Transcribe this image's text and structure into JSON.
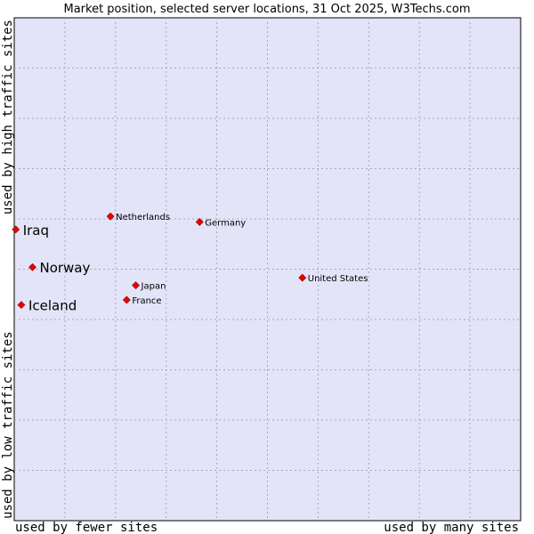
{
  "chart_data": {
    "type": "scatter",
    "title": "Market position, selected server locations, 31 Oct 2025, W3Techs.com",
    "xlabel_left": "used by fewer sites",
    "xlabel_right": "used by many sites",
    "ylabel_bottom": "used by low traffic sites",
    "ylabel_top": "used by high traffic sites",
    "xlim": [
      0,
      100
    ],
    "ylim": [
      0,
      100
    ],
    "grid": true,
    "colors": {
      "plot_bg": "#e3e4f8",
      "grid": "#a8a8c0",
      "point": "#ee0000",
      "point_border": "#880000"
    },
    "points": [
      {
        "name": "Iraq",
        "x": 0.3,
        "y": 57.9,
        "emphasis": true
      },
      {
        "name": "Norway",
        "x": 3.6,
        "y": 50.4,
        "emphasis": true
      },
      {
        "name": "Iceland",
        "x": 1.4,
        "y": 42.9,
        "emphasis": true
      },
      {
        "name": "Netherlands",
        "x": 19.0,
        "y": 60.5,
        "emphasis": false
      },
      {
        "name": "Germany",
        "x": 36.6,
        "y": 59.4,
        "emphasis": false
      },
      {
        "name": "Japan",
        "x": 24.0,
        "y": 46.8,
        "emphasis": false
      },
      {
        "name": "France",
        "x": 22.2,
        "y": 43.9,
        "emphasis": false
      },
      {
        "name": "United States",
        "x": 56.9,
        "y": 48.3,
        "emphasis": false
      }
    ]
  }
}
